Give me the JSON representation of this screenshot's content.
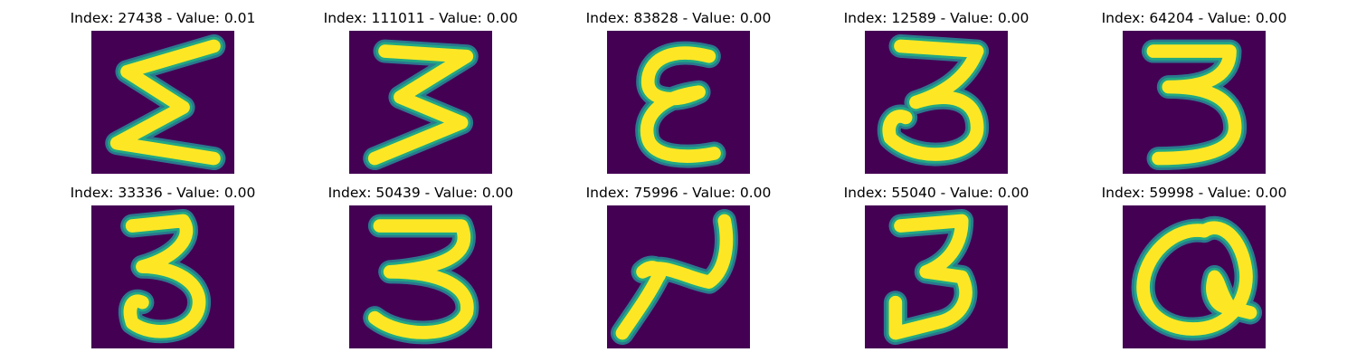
{
  "colors": {
    "background": "#440154",
    "stroke_core": "#fde725",
    "stroke_edge": "#22a884",
    "stroke_halo": "#2a788e"
  },
  "panels": [
    {
      "title": "Index: 27438 - Value: 0.01",
      "digit": "sigma"
    },
    {
      "title": "Index: 111011 - Value: 0.00",
      "digit": "three-zigzag"
    },
    {
      "title": "Index: 83828 - Value: 0.00",
      "digit": "epsilon"
    },
    {
      "title": "Index: 12589 - Value: 0.00",
      "digit": "three-flat-top"
    },
    {
      "title": "Index: 64204 - Value: 0.00",
      "digit": "three"
    },
    {
      "title": "Index: 33336 - Value: 0.00",
      "digit": "three-hook"
    },
    {
      "title": "Index: 50439 - Value: 0.00",
      "digit": "three-wide"
    },
    {
      "title": "Index: 75996 - Value: 0.00",
      "digit": "two-slant"
    },
    {
      "title": "Index: 55040 - Value: 0.00",
      "digit": "three-angular"
    },
    {
      "title": "Index: 59998 - Value: 0.00",
      "digit": "q-loop"
    }
  ]
}
